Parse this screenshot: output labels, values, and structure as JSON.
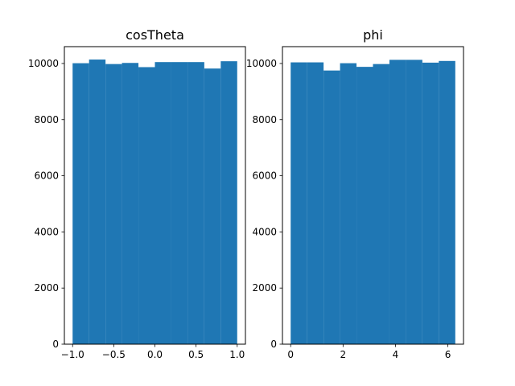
{
  "chart_data": [
    {
      "type": "bar",
      "title": "cosTheta",
      "xlim": [
        -1.1,
        1.1
      ],
      "ylim": [
        0,
        10600
      ],
      "xticks": [
        -1.0,
        -0.5,
        0.0,
        0.5,
        1.0
      ],
      "xtick_labels": [
        "−1.0",
        "−0.5",
        "0.0",
        "0.5",
        "1.0"
      ],
      "yticks": [
        0,
        2000,
        4000,
        6000,
        8000,
        10000
      ],
      "ytick_labels": [
        "0",
        "2000",
        "4000",
        "6000",
        "8000",
        "10000"
      ],
      "bin_edges": [
        -1.0,
        -0.8,
        -0.6,
        -0.4,
        -0.2,
        0.0,
        0.2,
        0.4,
        0.6,
        0.8,
        1.0
      ],
      "values": [
        10010,
        10140,
        9980,
        10020,
        9870,
        10050,
        10050,
        10050,
        9820,
        10080
      ],
      "color": "#1f77b4"
    },
    {
      "type": "bar",
      "title": "phi",
      "xlim": [
        -0.314,
        6.597
      ],
      "ylim": [
        0,
        10600
      ],
      "xticks": [
        0,
        2,
        4,
        6
      ],
      "xtick_labels": [
        "0",
        "2",
        "4",
        "6"
      ],
      "yticks": [
        0,
        2000,
        4000,
        6000,
        8000,
        10000
      ],
      "ytick_labels": [
        "0",
        "2000",
        "4000",
        "6000",
        "8000",
        "10000"
      ],
      "bin_edges": [
        0,
        0.6283,
        1.2566,
        1.885,
        2.5133,
        3.1416,
        3.7699,
        4.3982,
        5.0265,
        5.6549,
        6.2832
      ],
      "values": [
        10040,
        10040,
        9750,
        10010,
        9880,
        9980,
        10130,
        10130,
        10030,
        10090
      ],
      "color": "#1f77b4"
    }
  ]
}
